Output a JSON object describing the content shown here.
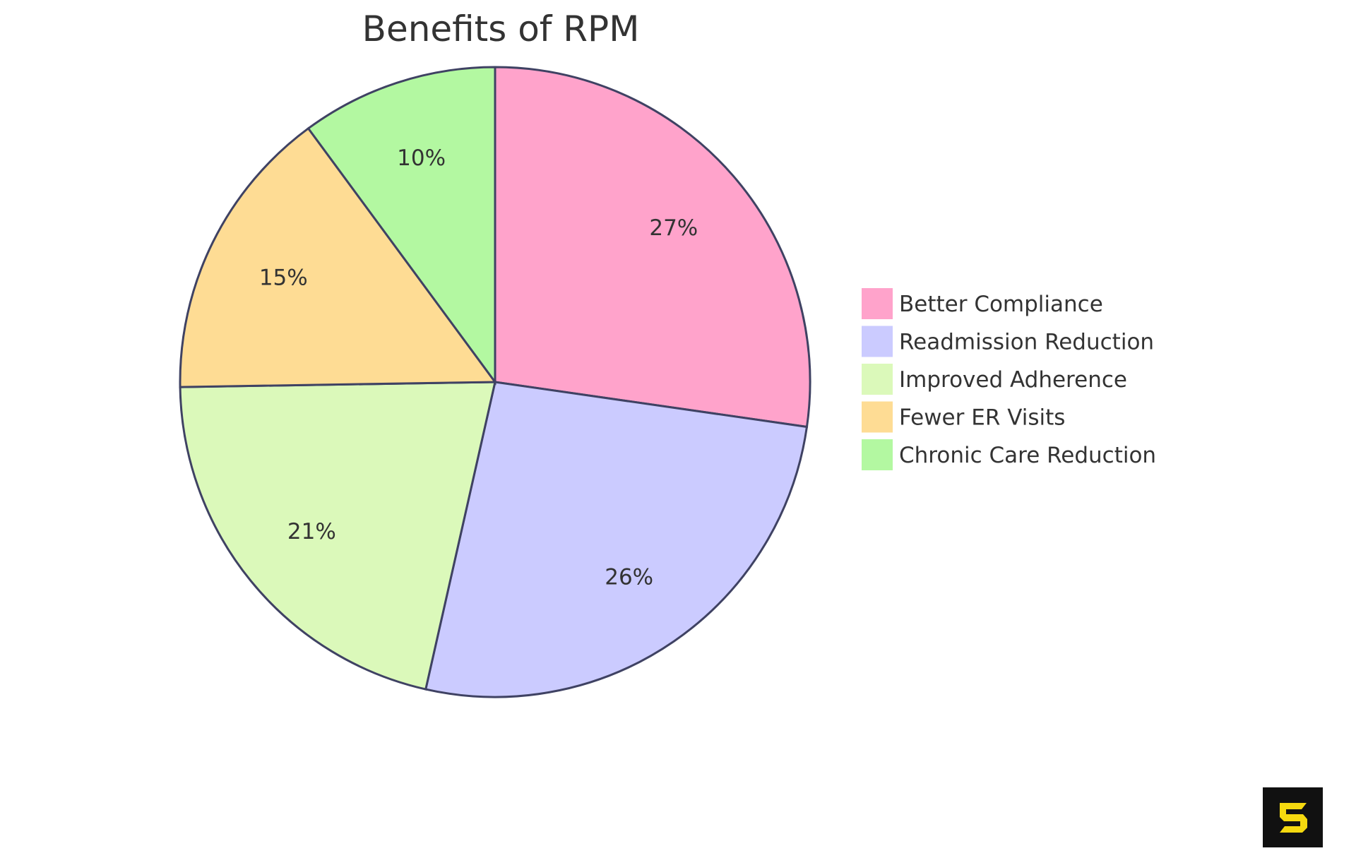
{
  "chart_data": {
    "type": "pie",
    "title": "Benefits of RPM",
    "categories": [
      "Better Compliance",
      "Readmission Reduction",
      "Improved Adherence",
      "Fewer ER Visits",
      "Chronic Care Reduction"
    ],
    "values": [
      27,
      26,
      21,
      15,
      10
    ],
    "labels": [
      "27%",
      "26%",
      "21%",
      "15%",
      "10%"
    ],
    "colors": [
      "#FFA3CB",
      "#CBCBFF",
      "#DBF9BA",
      "#FEDC94",
      "#B3F8A1"
    ],
    "stroke_color": "#3F4263",
    "legend_position": "right",
    "start_angle": "top, clockwise"
  },
  "legend": {
    "items": [
      {
        "label": "Better Compliance",
        "color": "#FFA3CB"
      },
      {
        "label": "Readmission Reduction",
        "color": "#CBCBFF"
      },
      {
        "label": "Improved Adherence",
        "color": "#DBF9BA"
      },
      {
        "label": "Fewer ER Visits",
        "color": "#FEDC94"
      },
      {
        "label": "Chronic Care Reduction",
        "color": "#B3F8A1"
      }
    ]
  },
  "logo": {
    "name": "brand-logo",
    "bg": "#111111",
    "fg": "#F5D90F"
  }
}
